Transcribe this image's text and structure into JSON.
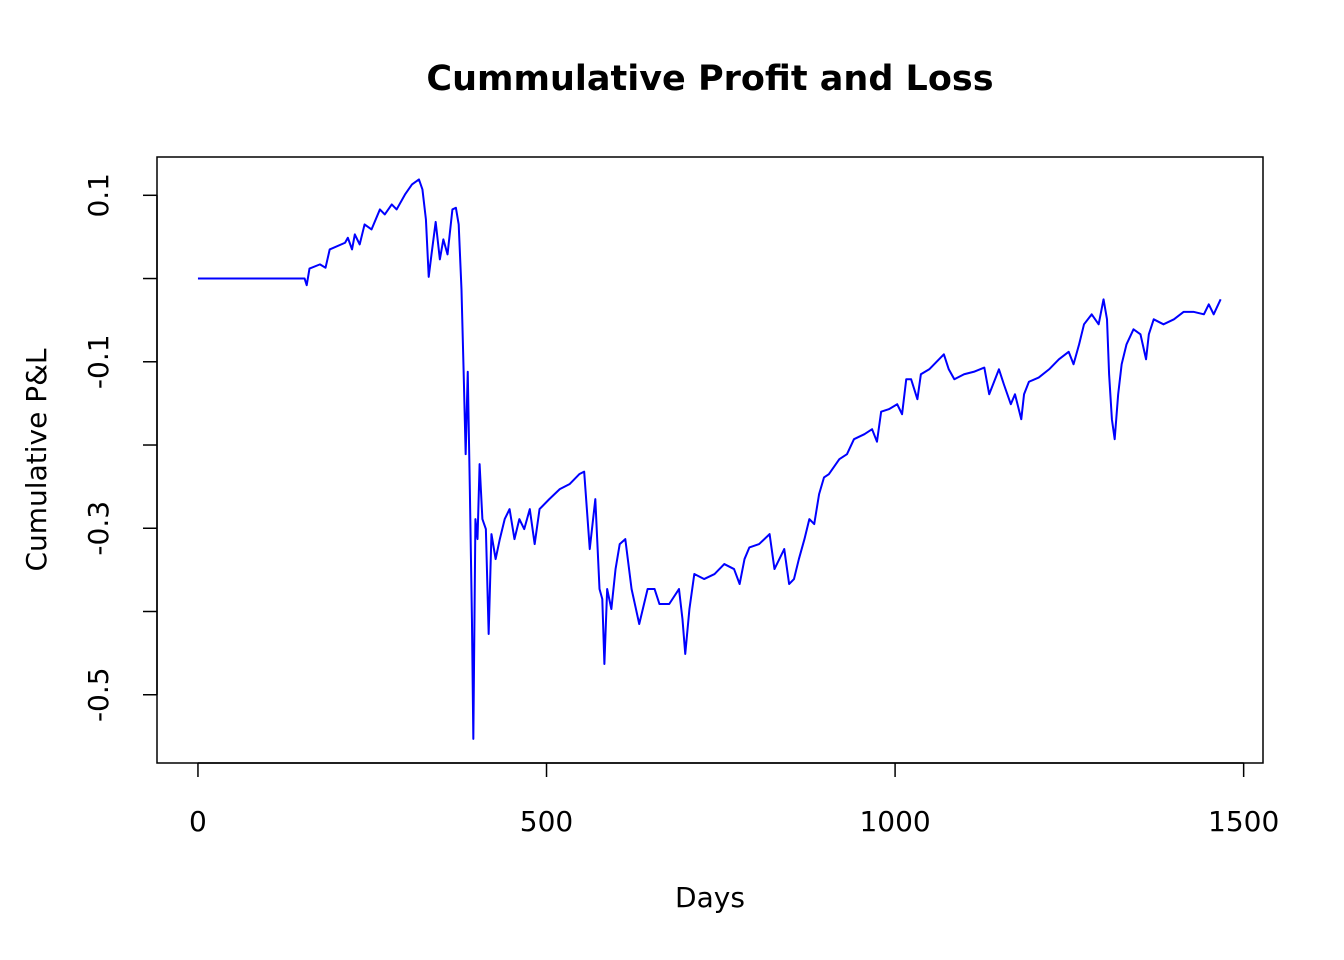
{
  "chart_data": {
    "type": "line",
    "title": "Cummulative Profit and Loss",
    "x_label": "Days",
    "y_label": "Cumulative P&L",
    "color": "#0000ff",
    "grid": false,
    "xlim": [
      -58.76,
      1527.76
    ],
    "ylim": [
      -0.582,
      0.146
    ],
    "xticks": [
      0,
      500,
      1000,
      1500
    ],
    "yticks": [
      -0.5,
      -0.3,
      -0.1,
      0.1
    ],
    "yminor_ticks": [
      -0.4,
      -0.2,
      0
    ],
    "x": [
      0,
      153,
      156,
      160,
      175,
      183,
      189,
      211,
      215,
      221,
      225,
      232,
      239,
      249,
      261,
      268,
      278,
      285,
      297,
      307,
      317,
      322,
      327,
      331,
      335,
      341,
      347,
      352,
      358,
      365,
      370,
      374,
      378,
      381,
      384,
      387,
      390,
      393,
      395,
      398,
      401,
      404,
      408,
      413,
      417,
      421,
      427,
      433,
      440,
      447,
      454,
      461,
      468,
      476,
      483,
      490,
      504,
      519,
      533,
      547,
      554,
      562,
      570,
      576,
      580,
      583,
      587,
      593,
      599,
      605,
      613,
      622,
      633,
      645,
      655,
      662,
      676,
      690,
      695,
      699,
      705,
      712,
      726,
      741,
      755,
      769,
      777,
      784,
      791,
      805,
      820,
      827,
      834,
      841,
      848,
      855,
      862,
      870,
      877,
      884,
      891,
      898,
      905,
      920,
      931,
      941,
      956,
      967,
      974,
      980,
      991,
      1003,
      1010,
      1016,
      1023,
      1032,
      1037,
      1049,
      1063,
      1070,
      1077,
      1085,
      1099,
      1113,
      1128,
      1135,
      1149,
      1156,
      1166,
      1172,
      1181,
      1185,
      1192,
      1206,
      1221,
      1235,
      1249,
      1256,
      1264,
      1271,
      1282,
      1292,
      1299,
      1304,
      1307,
      1311,
      1315,
      1320,
      1325,
      1332,
      1342,
      1352,
      1360,
      1364,
      1371,
      1385,
      1400,
      1414,
      1428,
      1443,
      1450,
      1457,
      1467
    ],
    "values": [
      0,
      0,
      -0.008,
      0.012,
      0.017,
      0.013,
      0.035,
      0.043,
      0.049,
      0.035,
      0.053,
      0.041,
      0.065,
      0.059,
      0.083,
      0.077,
      0.089,
      0.083,
      0.101,
      0.113,
      0.119,
      0.107,
      0.071,
      0.002,
      0.029,
      0.068,
      0.023,
      0.047,
      0.029,
      0.083,
      0.085,
      0.065,
      -0.013,
      -0.109,
      -0.211,
      -0.112,
      -0.253,
      -0.409,
      -0.553,
      -0.289,
      -0.313,
      -0.223,
      -0.289,
      -0.301,
      -0.427,
      -0.307,
      -0.337,
      -0.313,
      -0.289,
      -0.277,
      -0.313,
      -0.289,
      -0.301,
      -0.277,
      -0.319,
      -0.277,
      -0.265,
      -0.253,
      -0.247,
      -0.235,
      -0.232,
      -0.325,
      -0.265,
      -0.373,
      -0.385,
      -0.463,
      -0.373,
      -0.397,
      -0.349,
      -0.319,
      -0.313,
      -0.373,
      -0.415,
      -0.373,
      -0.373,
      -0.391,
      -0.391,
      -0.373,
      -0.409,
      -0.451,
      -0.397,
      -0.355,
      -0.361,
      -0.355,
      -0.343,
      -0.349,
      -0.367,
      -0.337,
      -0.323,
      -0.319,
      -0.307,
      -0.349,
      -0.337,
      -0.325,
      -0.367,
      -0.361,
      -0.337,
      -0.313,
      -0.289,
      -0.295,
      -0.259,
      -0.239,
      -0.235,
      -0.217,
      -0.211,
      -0.193,
      -0.187,
      -0.181,
      -0.196,
      -0.16,
      -0.157,
      -0.151,
      -0.163,
      -0.121,
      -0.121,
      -0.145,
      -0.115,
      -0.109,
      -0.097,
      -0.091,
      -0.109,
      -0.121,
      -0.115,
      -0.112,
      -0.107,
      -0.139,
      -0.109,
      -0.127,
      -0.151,
      -0.139,
      -0.169,
      -0.139,
      -0.124,
      -0.119,
      -0.109,
      -0.097,
      -0.088,
      -0.103,
      -0.079,
      -0.055,
      -0.043,
      -0.055,
      -0.025,
      -0.049,
      -0.115,
      -0.169,
      -0.193,
      -0.139,
      -0.103,
      -0.079,
      -0.061,
      -0.067,
      -0.097,
      -0.067,
      -0.049,
      -0.055,
      -0.049,
      -0.04,
      -0.04,
      -0.043,
      -0.031,
      -0.043,
      -0.025
    ]
  }
}
